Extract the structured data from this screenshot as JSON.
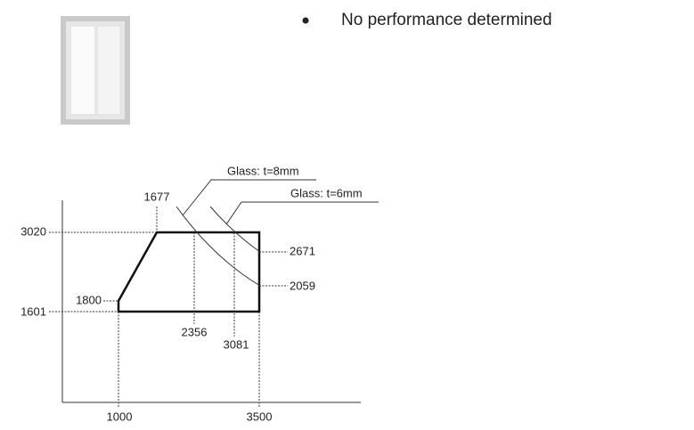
{
  "bullet": "No performance determined",
  "diagram": {
    "glass_8": "Glass: t=8mm",
    "glass_6": "Glass: t=6mm",
    "labels": {
      "y_3020": "3020",
      "y_1601": "1601",
      "h_1800": "1800",
      "w_1677": "1677",
      "w_2356": "2356",
      "w_3081": "3081",
      "h_2671": "2671",
      "h_2059": "2059",
      "x_1000": "1000",
      "x_3500": "3500"
    }
  }
}
